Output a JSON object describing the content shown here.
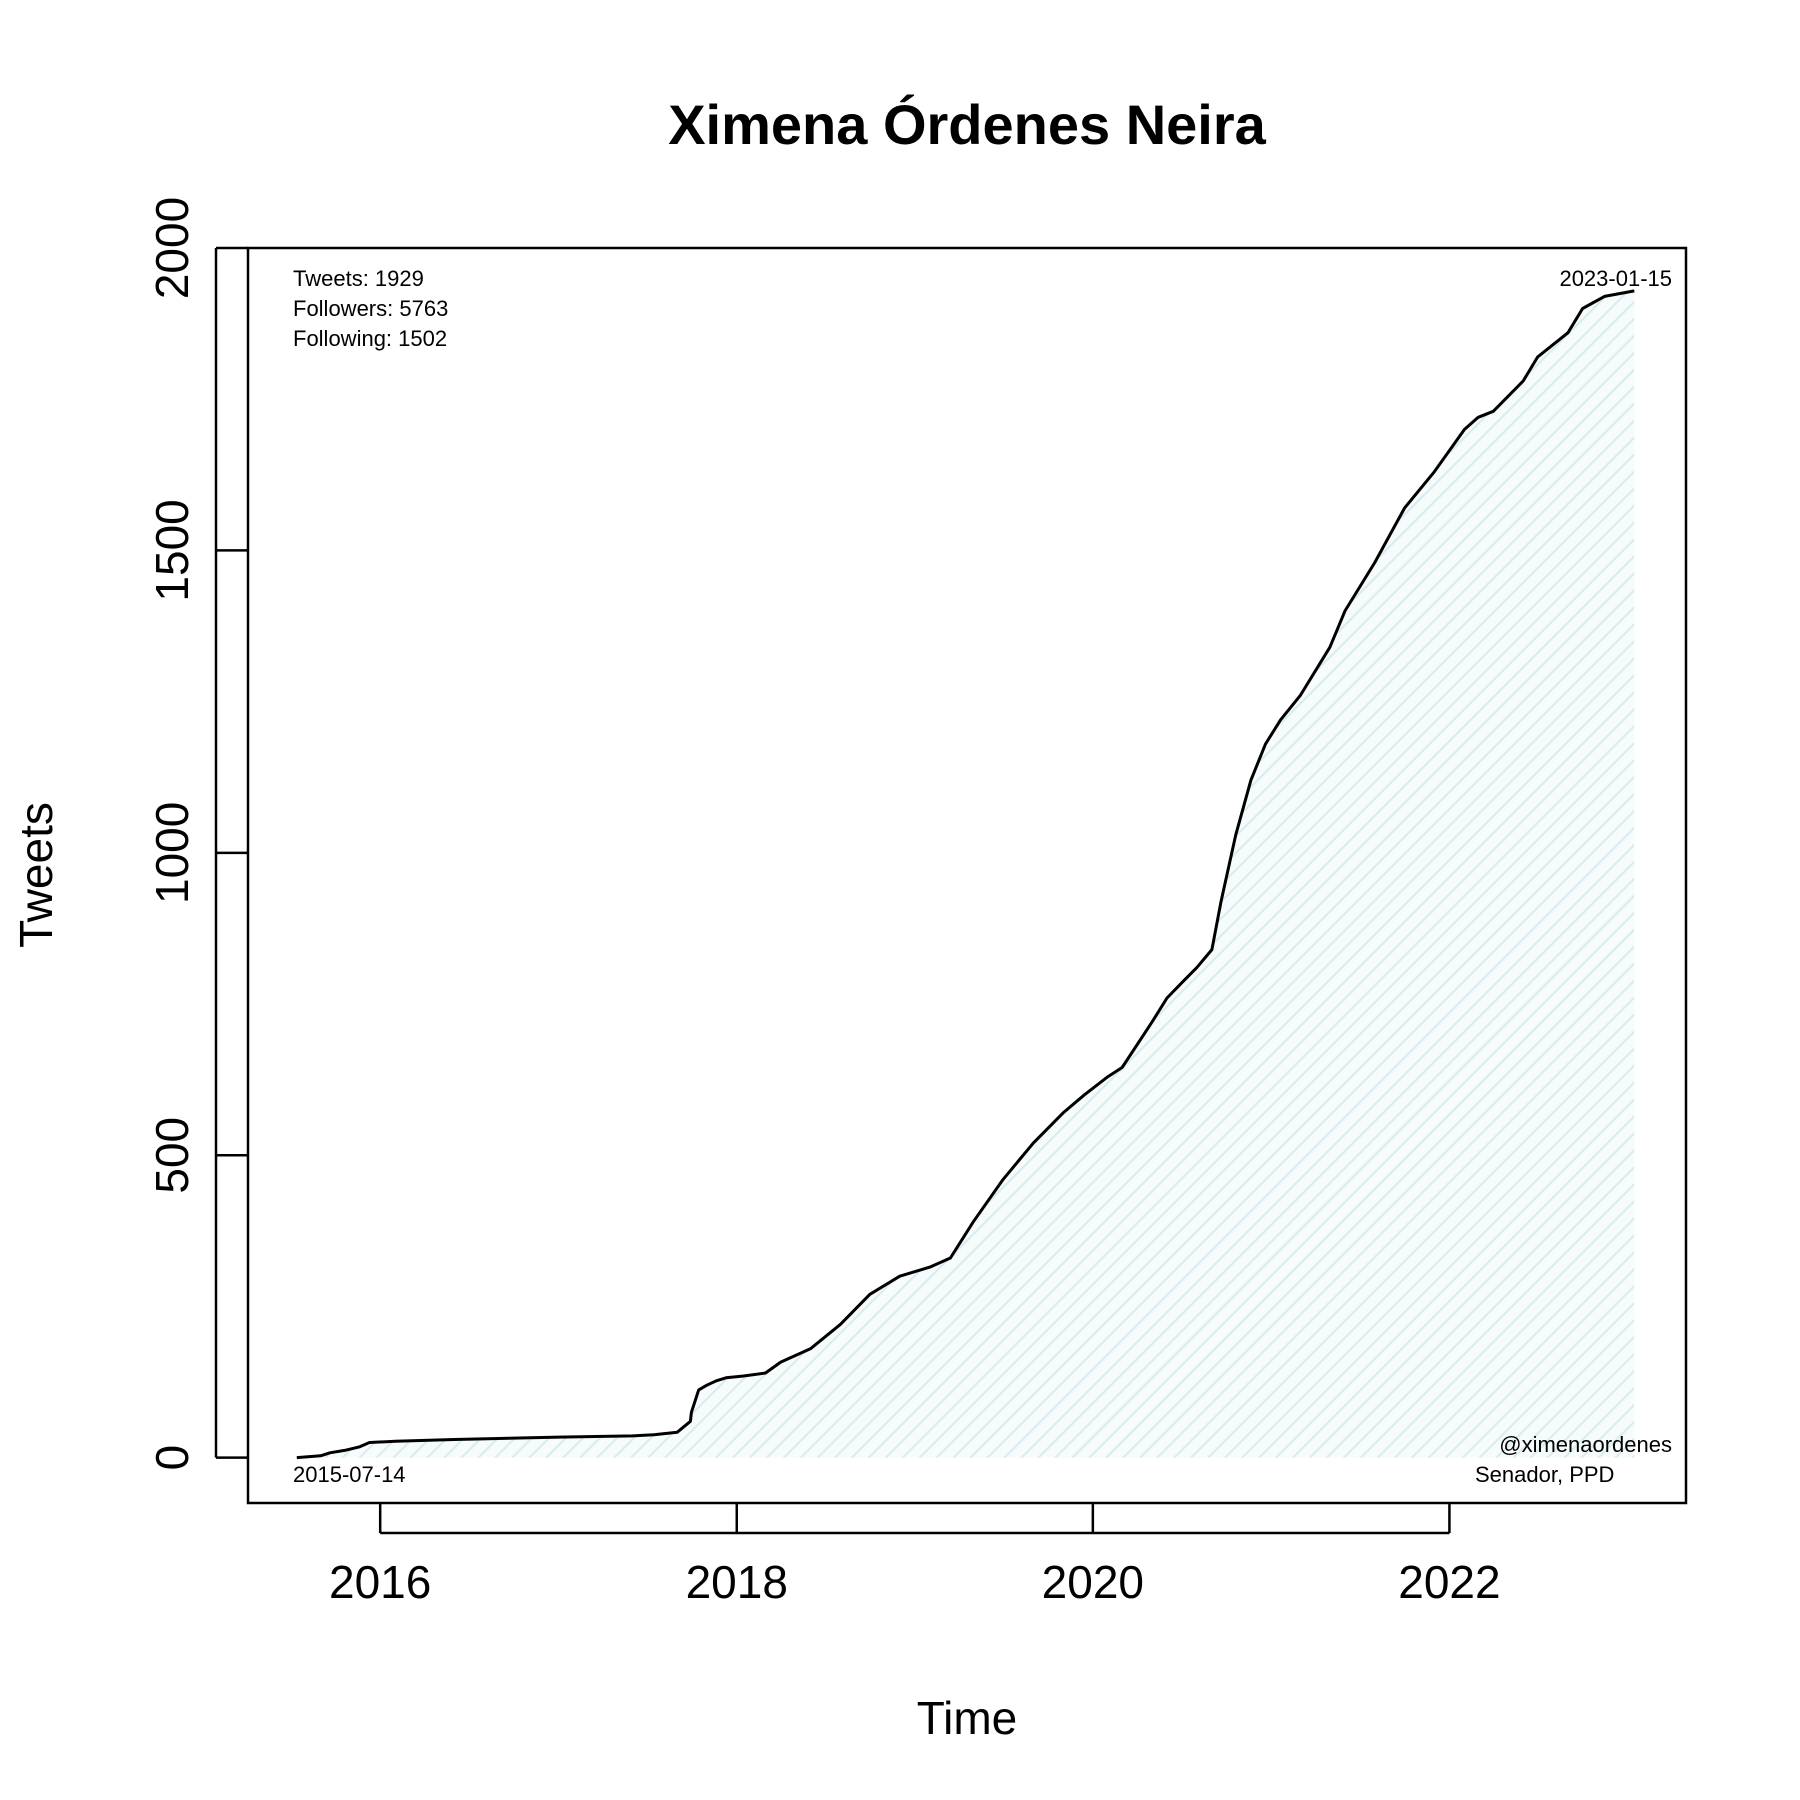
{
  "chart_data": {
    "type": "line",
    "title": "Ximena Órdenes Neira",
    "xlabel": "Time",
    "ylabel": "Tweets",
    "xlim": [
      "2015-04-05",
      "2023-05-01"
    ],
    "ylim": [
      -75,
      2000
    ],
    "x_ticks": [
      "2016",
      "2018",
      "2020",
      "2022"
    ],
    "x_tick_dates": [
      "2016-01-01",
      "2018-01-01",
      "2020-01-01",
      "2022-01-01"
    ],
    "y_ticks": [
      0,
      500,
      1000,
      1500,
      2000
    ],
    "grid": false,
    "fill_under_line": true,
    "fill_color": "#eaf4f6",
    "line_color": "#000000",
    "series": [
      {
        "x": [
          "2015-07-14",
          "2015-09-01",
          "2015-09-20",
          "2015-10-20",
          "2015-11-20",
          "2015-12-10",
          "2016-02-01",
          "2016-06-01",
          "2017-01-01",
          "2017-06-01",
          "2017-07-15",
          "2017-09-01",
          "2017-09-28",
          "2017-09-30",
          "2017-10-15",
          "2017-11-01",
          "2017-11-20",
          "2017-12-10",
          "2018-01-15",
          "2018-03-01",
          "2018-04-01",
          "2018-06-01",
          "2018-08-01",
          "2018-10-01",
          "2018-12-01",
          "2019-02-01",
          "2019-03-15",
          "2019-05-01",
          "2019-07-01",
          "2019-09-01",
          "2019-11-01",
          "2019-12-15",
          "2020-02-01",
          "2020-03-01",
          "2020-05-01",
          "2020-06-01",
          "2020-07-01",
          "2020-08-01",
          "2020-09-01",
          "2020-09-20",
          "2020-10-20",
          "2020-11-20",
          "2020-12-20",
          "2021-01-20",
          "2021-03-01",
          "2021-05-01",
          "2021-06-01",
          "2021-08-01",
          "2021-10-01",
          "2021-12-01",
          "2022-02-01",
          "2022-03-01",
          "2022-04-01",
          "2022-06-01",
          "2022-07-01",
          "2022-09-01",
          "2022-10-01",
          "2022-11-15",
          "2023-01-15"
        ],
        "y": [
          0,
          3,
          8,
          12,
          18,
          25,
          27,
          30,
          34,
          36,
          38,
          42,
          60,
          75,
          112,
          120,
          127,
          132,
          135,
          140,
          158,
          180,
          220,
          270,
          300,
          315,
          330,
          390,
          460,
          520,
          570,
          600,
          630,
          645,
          720,
          760,
          785,
          810,
          840,
          920,
          1030,
          1120,
          1180,
          1220,
          1260,
          1340,
          1400,
          1480,
          1570,
          1630,
          1700,
          1720,
          1730,
          1780,
          1820,
          1860,
          1900,
          1920,
          1929
        ]
      }
    ],
    "annotations": {
      "stats": [
        "Tweets: 1929",
        "Followers: 5763",
        "Following: 1502"
      ],
      "start_date": "2015-07-14",
      "end_date": "2023-01-15",
      "handle": "@ximenaordenes",
      "role": "Senador, PPD"
    }
  }
}
